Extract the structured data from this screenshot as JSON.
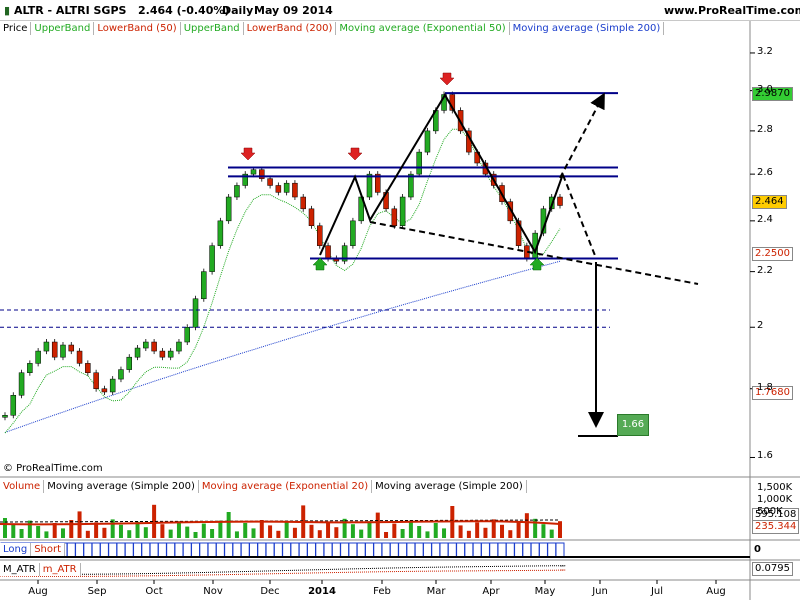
{
  "header": {
    "instrument": "ALTR - ALTRI SGPS",
    "price_change": "2.464 (-0.40%)",
    "period": "Daily",
    "date": "May 09 2014",
    "site": "www.ProRealTime.com"
  },
  "legend_main": [
    {
      "label": "Price",
      "color": "#000000"
    },
    {
      "label": "UpperBand",
      "color": "#22aa22"
    },
    {
      "label": "LowerBand (50)",
      "color": "#cc2200"
    },
    {
      "label": "UpperBand",
      "color": "#22aa22"
    },
    {
      "label": "LowerBand (200)",
      "color": "#cc2200"
    },
    {
      "label": "Moving average (Exponential 50)",
      "color": "#22aa22"
    },
    {
      "label": "Moving average (Simple 200)",
      "color": "#1a3dcc"
    }
  ],
  "legend_volume": [
    {
      "label": "Volume",
      "color": "#cc2200"
    },
    {
      "label": "Moving average (Simple 200)",
      "color": "#000000"
    },
    {
      "label": "Moving average (Exponential 20)",
      "color": "#cc2200"
    },
    {
      "label": "Moving average (Simple 200)",
      "color": "#000000"
    }
  ],
  "legend_longshort": [
    {
      "label": "Long",
      "color": "#1a3dcc"
    },
    {
      "label": "Short",
      "color": "#cc2200"
    }
  ],
  "legend_atr": [
    {
      "label": "M_ATR",
      "color": "#000000"
    },
    {
      "label": "m_ATR",
      "color": "#cc2200"
    }
  ],
  "copyright": "© ProRealTime.com",
  "price_boxes": {
    "top": "2.9870",
    "last": "2.464",
    "support": "2.2500",
    "lower": "1.7680",
    "target": "1.66",
    "volume_ma": "595.108",
    "volume_ma2": "235.344",
    "longshort": "0",
    "atr": "0.0795"
  },
  "volume_ticks": [
    "1,500K",
    "1,000K",
    "500K"
  ],
  "colors": {
    "candle_up": "#22aa22",
    "candle_down": "#cc2200",
    "band_line": "#000088",
    "sma200": "#1a3dcc",
    "ema50": "#22aa22",
    "box_top": "#33cc33",
    "box_last": "#ffcc00",
    "box_target": "#55aa55",
    "arrow_up": "#22aa22",
    "arrow_down": "#dd2222"
  },
  "chart_data": {
    "type": "candlestick",
    "title": "ALTR - ALTRI SGPS",
    "xlabel": "",
    "ylabel": "",
    "x_ticks": [
      "Aug",
      "Sep",
      "Oct",
      "Nov",
      "Dec",
      "2014",
      "Feb",
      "Mar",
      "Apr",
      "May",
      "Jun",
      "Jul",
      "Aug"
    ],
    "y_ticks": [
      1.6,
      1.8,
      2,
      2.2,
      2.4,
      2.6,
      2.8,
      3.0,
      3.2
    ],
    "ylim": [
      1.55,
      3.3
    ],
    "log_scale": true,
    "grid": false,
    "close_series": [
      1.72,
      1.78,
      1.85,
      1.88,
      1.92,
      1.95,
      1.9,
      1.94,
      1.92,
      1.88,
      1.85,
      1.8,
      1.79,
      1.83,
      1.86,
      1.9,
      1.93,
      1.95,
      1.92,
      1.9,
      1.92,
      1.95,
      2.0,
      2.1,
      2.2,
      2.3,
      2.4,
      2.5,
      2.55,
      2.6,
      2.62,
      2.58,
      2.55,
      2.52,
      2.56,
      2.5,
      2.45,
      2.38,
      2.3,
      2.25,
      2.24,
      2.3,
      2.4,
      2.5,
      2.6,
      2.52,
      2.45,
      2.38,
      2.5,
      2.6,
      2.7,
      2.8,
      2.9,
      2.98,
      2.9,
      2.8,
      2.7,
      2.65,
      2.6,
      2.55,
      2.48,
      2.4,
      2.3,
      2.25,
      2.35,
      2.45,
      2.5,
      2.464
    ],
    "levels": {
      "top_line": 2.987,
      "resistance_upper": 2.63,
      "resistance_lower": 2.59,
      "support": 2.25,
      "dashed_1": 2.06,
      "dashed_2": 2.0,
      "target": 1.66
    },
    "volume": {
      "ylim_k": [
        0,
        1700
      ],
      "ma_k": 595.108
    }
  }
}
